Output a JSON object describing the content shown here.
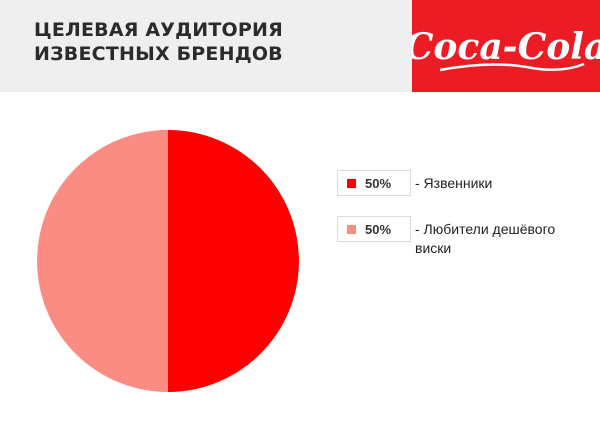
{
  "header": {
    "title": "ЦЕЛЕВАЯ АУДИТОРИЯ ИЗВЕСТНЫХ БРЕНДОВ",
    "brand_logo_text": "Coca-Cola",
    "logo_color": "#ffffff",
    "panel_color": "#ec1c24"
  },
  "chart_data": {
    "type": "pie",
    "title": "",
    "slices": [
      {
        "label": "50%",
        "name": "- Язвенники",
        "value": 50,
        "color": "#ff0000"
      },
      {
        "label": "50%",
        "name": "- Любители дешёвого виски",
        "value": 50,
        "color": "#fa8c84"
      }
    ],
    "start": "top",
    "direction": "clockwise",
    "legend_position": "right"
  }
}
